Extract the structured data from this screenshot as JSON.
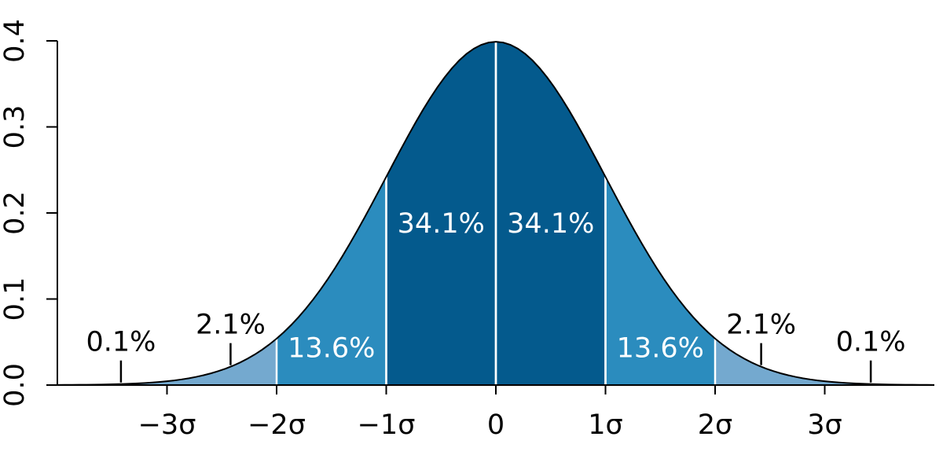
{
  "chart_data": {
    "type": "normal-distribution",
    "xlim": [
      -4,
      4
    ],
    "xticks": [
      {
        "value": -3,
        "label": "−3σ"
      },
      {
        "value": -2,
        "label": "−2σ"
      },
      {
        "value": -1,
        "label": "−1σ"
      },
      0,
      {
        "value": 1,
        "label": "1σ"
      },
      {
        "value": 2,
        "label": "2σ"
      },
      {
        "value": 3,
        "label": "3σ"
      }
    ],
    "ylim": [
      0,
      0.4
    ],
    "yticks": [
      {
        "value": 0,
        "label": "0.0"
      },
      0.1,
      0.2,
      0.3,
      0.4
    ],
    "regions": [
      {
        "range": [
          -4,
          -3
        ],
        "value": 0.1,
        "value_label": "0.1%",
        "color": "#74a9cf",
        "label_inside": false
      },
      {
        "range": [
          -3,
          -2
        ],
        "value": 2.1,
        "value_label": "2.1%",
        "color": "#74a9cf",
        "label_inside": false
      },
      {
        "range": [
          -2,
          -1
        ],
        "value": 13.6,
        "value_label": "13.6%",
        "color": "#2b8cbe",
        "label_inside": true
      },
      {
        "range": [
          -1,
          0
        ],
        "value": 34.1,
        "value_label": "34.1%",
        "color": "#045a8d",
        "label_inside": true
      },
      {
        "range": [
          0,
          1
        ],
        "value": 34.1,
        "value_label": "34.1%",
        "color": "#045a8d",
        "label_inside": true
      },
      {
        "range": [
          1,
          2
        ],
        "value": 13.6,
        "value_label": "13.6%",
        "color": "#2b8cbe",
        "label_inside": true
      },
      {
        "range": [
          2,
          3
        ],
        "value": 2.1,
        "value_label": "2.1%",
        "color": "#74a9cf",
        "label_inside": false
      },
      {
        "range": [
          3,
          4
        ],
        "value": 0.1,
        "value_label": "0.1%",
        "color": "#74a9cf",
        "label_inside": false
      }
    ]
  }
}
